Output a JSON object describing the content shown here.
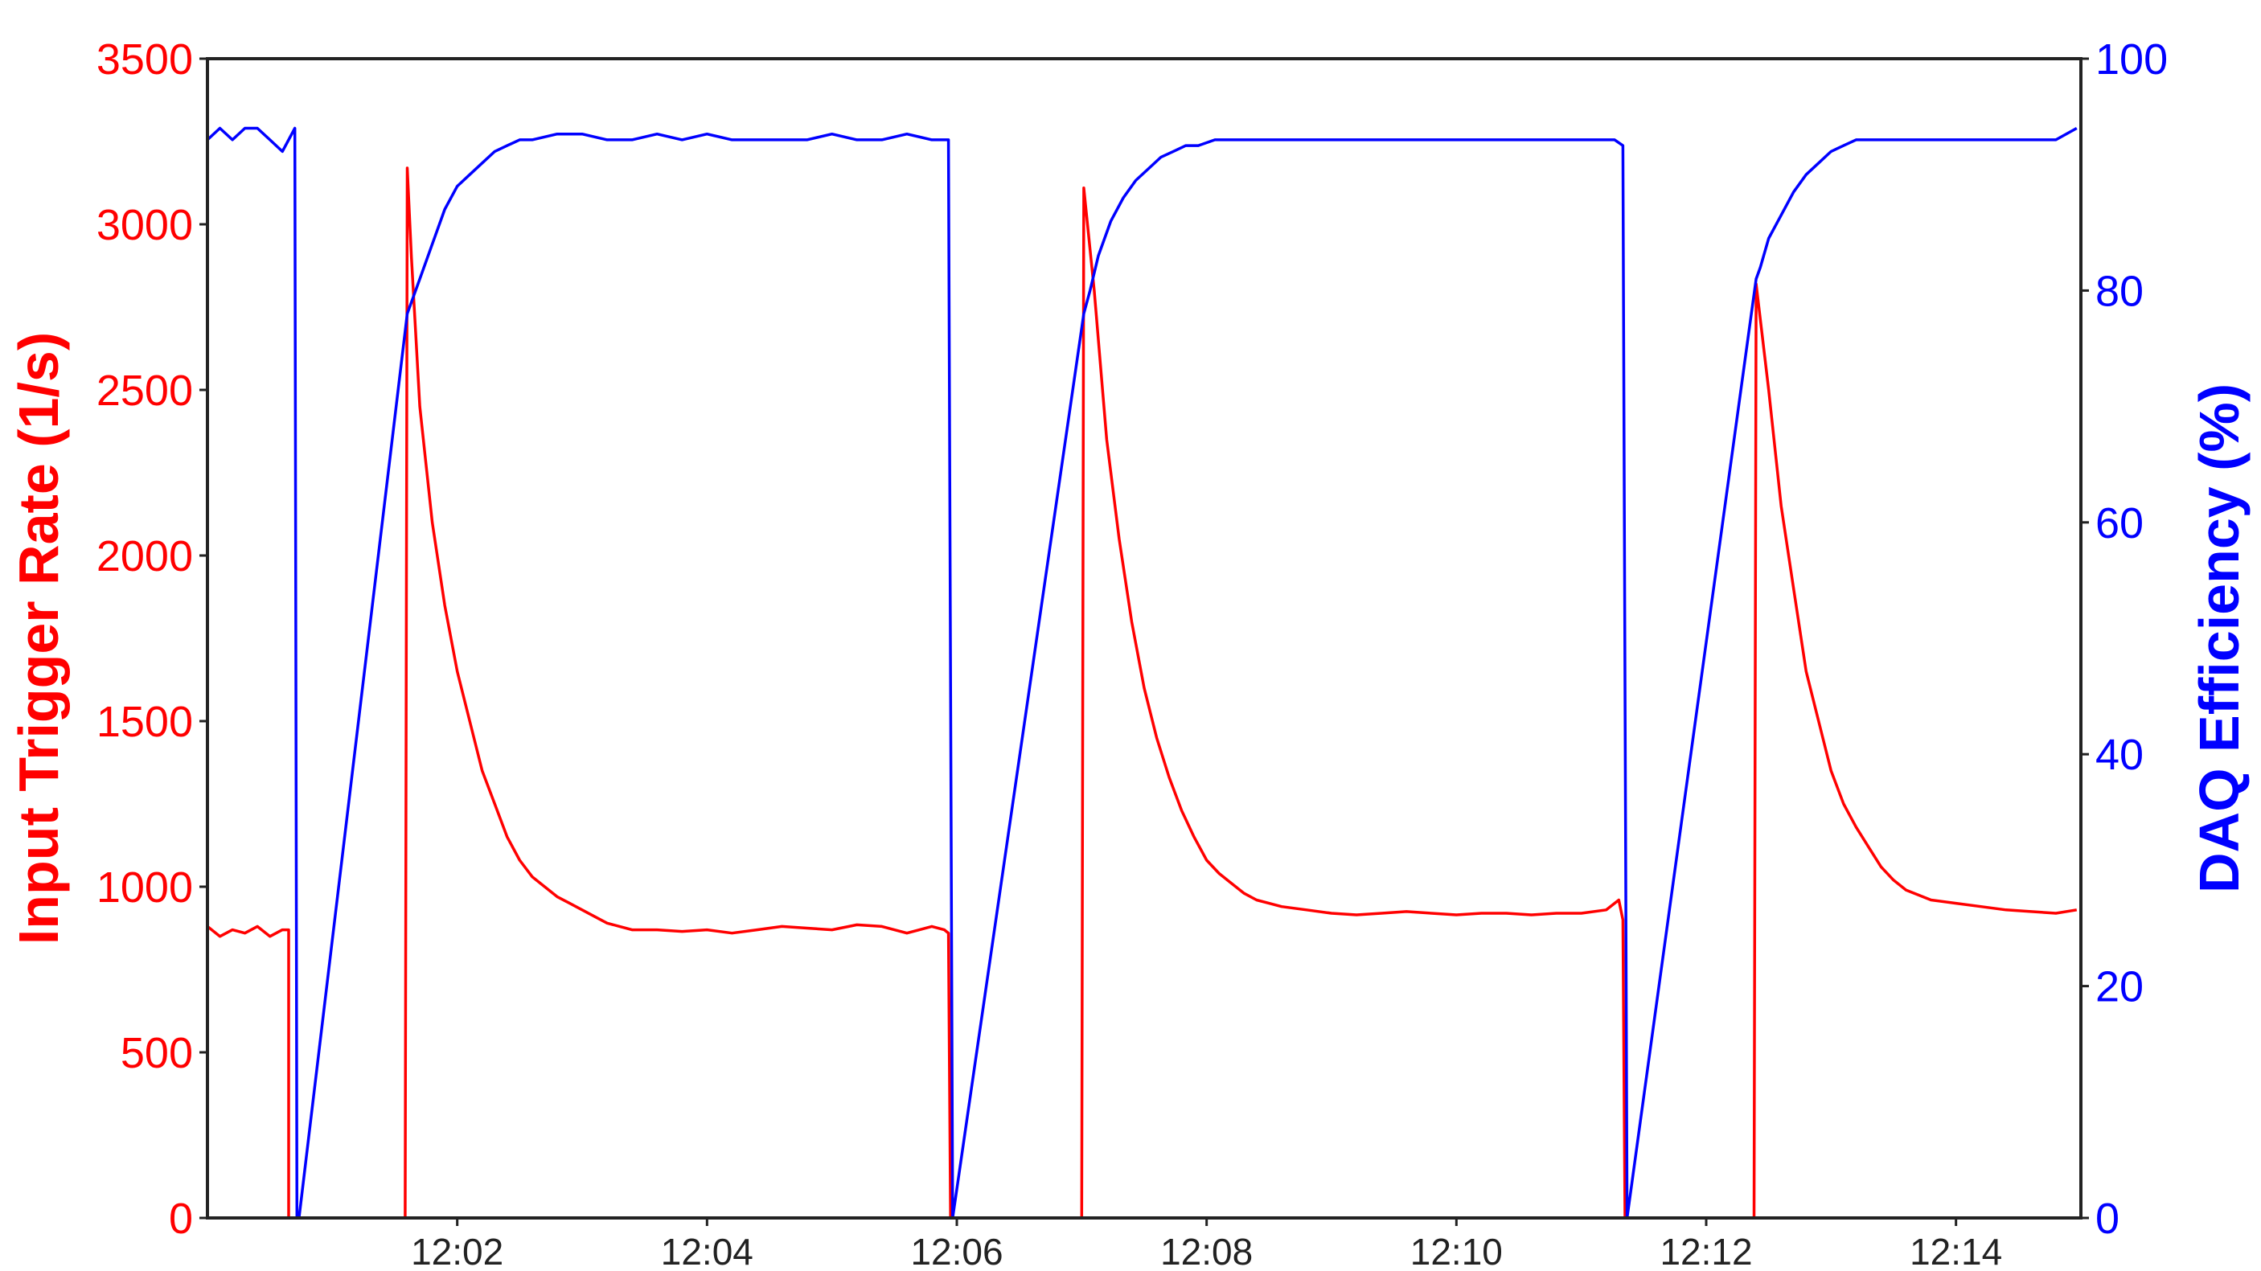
{
  "chart_data": {
    "type": "line",
    "x_unit": "time (HH:MM)",
    "xlim": [
      "12:00:00",
      "12:15:00"
    ],
    "x_ticks": [
      "12:02",
      "12:04",
      "12:06",
      "12:08",
      "12:10",
      "12:12",
      "12:14"
    ],
    "y_left": {
      "label": "Input Trigger Rate (1/s)",
      "ylim": [
        0,
        3500
      ],
      "ticks": [
        "0",
        "500",
        "1000",
        "1500",
        "2000",
        "2500",
        "3000",
        "3500"
      ],
      "color": "#ff0000"
    },
    "y_right": {
      "label": "DAQ Efficiency (%)",
      "ylim": [
        0,
        100
      ],
      "ticks": [
        "0",
        "20",
        "40",
        "60",
        "80",
        "100"
      ],
      "color": "#0000ff"
    },
    "grid": false,
    "series": [
      {
        "axis": "left",
        "color": "#ff0000",
        "x": [
          "12:00:00",
          "12:00:06",
          "12:00:12",
          "12:00:18",
          "12:00:24",
          "12:00:30",
          "12:00:36",
          "12:00:39",
          "12:00:39",
          "12:01:35",
          "12:01:36",
          "12:01:38",
          "12:01:42",
          "12:01:48",
          "12:01:54",
          "12:02:00",
          "12:02:06",
          "12:02:12",
          "12:02:18",
          "12:02:24",
          "12:02:30",
          "12:02:36",
          "12:02:42",
          "12:02:48",
          "12:02:54",
          "12:03:00",
          "12:03:06",
          "12:03:12",
          "12:03:18",
          "12:03:24",
          "12:03:36",
          "12:03:48",
          "12:04:00",
          "12:04:12",
          "12:04:24",
          "12:04:36",
          "12:04:48",
          "12:05:00",
          "12:05:12",
          "12:05:24",
          "12:05:36",
          "12:05:48",
          "12:05:54",
          "12:05:56",
          "12:05:57",
          "12:07:00",
          "12:07:01",
          "12:07:06",
          "12:07:12",
          "12:07:18",
          "12:07:24",
          "12:07:30",
          "12:07:36",
          "12:07:42",
          "12:07:48",
          "12:07:54",
          "12:08:00",
          "12:08:06",
          "12:08:12",
          "12:08:18",
          "12:08:24",
          "12:08:30",
          "12:08:36",
          "12:08:48",
          "12:09:00",
          "12:09:12",
          "12:09:24",
          "12:09:36",
          "12:09:48",
          "12:10:00",
          "12:10:12",
          "12:10:24",
          "12:10:36",
          "12:10:48",
          "12:11:00",
          "12:11:12",
          "12:11:18",
          "12:11:20",
          "12:11:21",
          "12:12:23",
          "12:12:24",
          "12:12:30",
          "12:12:36",
          "12:12:42",
          "12:12:48",
          "12:12:54",
          "12:13:00",
          "12:13:06",
          "12:13:12",
          "12:13:18",
          "12:13:24",
          "12:13:30",
          "12:13:36",
          "12:13:48",
          "12:14:00",
          "12:14:12",
          "12:14:24",
          "12:14:36",
          "12:14:48",
          "12:14:58"
        ],
        "y": [
          880,
          850,
          870,
          860,
          880,
          850,
          870,
          870,
          0,
          0,
          3170,
          2900,
          2450,
          2100,
          1850,
          1650,
          1500,
          1350,
          1250,
          1150,
          1080,
          1030,
          1000,
          970,
          950,
          930,
          910,
          890,
          880,
          870,
          870,
          865,
          870,
          860,
          870,
          880,
          875,
          870,
          885,
          880,
          860,
          880,
          870,
          860,
          0,
          0,
          3110,
          2800,
          2350,
          2050,
          1800,
          1600,
          1450,
          1330,
          1230,
          1150,
          1080,
          1040,
          1010,
          980,
          960,
          950,
          940,
          930,
          920,
          915,
          920,
          925,
          920,
          915,
          920,
          920,
          915,
          920,
          920,
          930,
          960,
          900,
          0,
          0,
          2820,
          2500,
          2150,
          1900,
          1650,
          1500,
          1350,
          1250,
          1180,
          1120,
          1060,
          1020,
          990,
          960,
          950,
          940,
          930,
          925,
          920,
          930
        ]
      },
      {
        "axis": "right",
        "color": "#0000ff",
        "x": [
          "12:00:00",
          "12:00:06",
          "12:00:12",
          "12:00:18",
          "12:00:24",
          "12:00:30",
          "12:00:36",
          "12:00:42",
          "12:00:43",
          "12:00:44",
          "12:01:36",
          "12:01:38",
          "12:01:42",
          "12:01:48",
          "12:01:54",
          "12:02:00",
          "12:02:06",
          "12:02:12",
          "12:02:18",
          "12:02:24",
          "12:02:30",
          "12:02:36",
          "12:02:48",
          "12:03:00",
          "12:03:12",
          "12:03:24",
          "12:03:36",
          "12:03:48",
          "12:04:00",
          "12:04:12",
          "12:04:24",
          "12:04:36",
          "12:04:48",
          "12:05:00",
          "12:05:12",
          "12:05:24",
          "12:05:36",
          "12:05:48",
          "12:05:56",
          "12:05:58",
          "12:07:01",
          "12:07:04",
          "12:07:08",
          "12:07:14",
          "12:07:20",
          "12:07:26",
          "12:07:32",
          "12:07:38",
          "12:07:44",
          "12:07:50",
          "12:07:56",
          "12:08:04",
          "12:08:16",
          "12:08:28",
          "12:08:40",
          "12:08:52",
          "12:09:04",
          "12:09:16",
          "12:09:28",
          "12:09:40",
          "12:09:52",
          "12:10:04",
          "12:10:16",
          "12:10:28",
          "12:10:40",
          "12:10:52",
          "12:11:04",
          "12:11:16",
          "12:11:20",
          "12:11:22",
          "12:12:24",
          "12:12:26",
          "12:12:30",
          "12:12:36",
          "12:12:42",
          "12:12:48",
          "12:12:54",
          "12:13:00",
          "12:13:06",
          "12:13:12",
          "12:13:24",
          "12:13:36",
          "12:13:48",
          "12:14:00",
          "12:14:12",
          "12:14:24",
          "12:14:36",
          "12:14:48",
          "12:14:58"
        ],
        "y": [
          93,
          94,
          93,
          94,
          94,
          93,
          92,
          94,
          0,
          0,
          78,
          79,
          81,
          84,
          87,
          89,
          90,
          91,
          92,
          92.5,
          93,
          93,
          93.5,
          93.5,
          93,
          93,
          93.5,
          93,
          93.5,
          93,
          93,
          93,
          93,
          93.5,
          93,
          93,
          93.5,
          93,
          93,
          0,
          78,
          80,
          83,
          86,
          88,
          89.5,
          90.5,
          91.5,
          92,
          92.5,
          92.5,
          93,
          93,
          93,
          93,
          93,
          93,
          93,
          93,
          93,
          93,
          93,
          93,
          93,
          93,
          93,
          93,
          93,
          92.5,
          0,
          81,
          82,
          84.5,
          86.5,
          88.5,
          90,
          91,
          92,
          92.5,
          93,
          93,
          93,
          93,
          93,
          93,
          93,
          93,
          93,
          94
        ]
      }
    ]
  }
}
